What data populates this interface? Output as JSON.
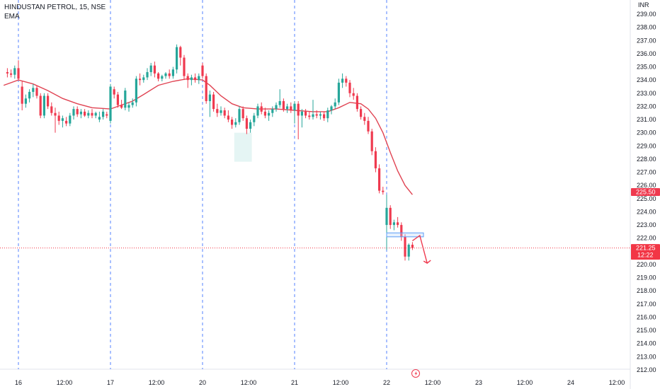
{
  "legend": {
    "symbol_line": "HINDUSTAN PETROL, 15, NSE",
    "indicator": "EMA"
  },
  "colors": {
    "up": "#26a69a",
    "down": "#ef3a4f",
    "ema": "#e04352",
    "grid_session": "#2962ff",
    "current_price_line": "#f23645",
    "axis_text": "#131722",
    "zone_fill": "#d3eeec",
    "range_box": "#bbd6f8"
  },
  "chart_data": {
    "type": "candlestick",
    "y_axis": {
      "currency": "INR",
      "min": 212.0,
      "max": 239.0,
      "ticks": [
        "212.00",
        "213.00",
        "214.00",
        "215.00",
        "216.00",
        "217.00",
        "218.00",
        "219.00",
        "220.00",
        "221.00",
        "222.00",
        "223.00",
        "224.00",
        "225.00",
        "226.00",
        "227.00",
        "228.00",
        "229.00",
        "230.00",
        "231.00",
        "232.00",
        "233.00",
        "234.00",
        "235.00",
        "236.00",
        "237.00",
        "238.00",
        "239.00"
      ]
    },
    "x_axis": {
      "labels": [
        "16",
        "12:00",
        "17",
        "12:00",
        "20",
        "12:00",
        "21",
        "12:00",
        "22",
        "12:00",
        "23",
        "12:00",
        "24",
        "12:00"
      ],
      "label_index": [
        0,
        12.5,
        25,
        37.5,
        50,
        62.5,
        75,
        87.5,
        100,
        112.5,
        125,
        137.5,
        150,
        162.5
      ],
      "range": [
        -4,
        164
      ],
      "session_starts": [
        0,
        25,
        50,
        75,
        100
      ]
    },
    "candles": [
      {
        "i": -3,
        "o": 234.6,
        "h": 234.9,
        "l": 234.2,
        "c": 234.5
      },
      {
        "i": -2,
        "o": 234.5,
        "h": 234.8,
        "l": 234.2,
        "c": 234.4
      },
      {
        "i": -1,
        "o": 234.4,
        "h": 235.1,
        "l": 234.1,
        "c": 234.9
      },
      {
        "i": 0,
        "o": 234.9,
        "h": 235.5,
        "l": 234.0,
        "c": 234.1
      },
      {
        "i": 1,
        "o": 233.5,
        "h": 233.9,
        "l": 231.7,
        "c": 232.2
      },
      {
        "i": 2,
        "o": 232.2,
        "h": 232.9,
        "l": 231.9,
        "c": 232.6
      },
      {
        "i": 3,
        "o": 232.6,
        "h": 233.3,
        "l": 232.3,
        "c": 233.1
      },
      {
        "i": 4,
        "o": 233.1,
        "h": 233.7,
        "l": 232.7,
        "c": 233.4
      },
      {
        "i": 5,
        "o": 233.4,
        "h": 233.6,
        "l": 232.6,
        "c": 232.8
      },
      {
        "i": 6,
        "o": 232.8,
        "h": 233.0,
        "l": 231.1,
        "c": 231.3
      },
      {
        "i": 7,
        "o": 231.3,
        "h": 233.0,
        "l": 231.1,
        "c": 232.8
      },
      {
        "i": 8,
        "o": 232.8,
        "h": 233.0,
        "l": 231.8,
        "c": 232.0
      },
      {
        "i": 9,
        "o": 232.0,
        "h": 232.3,
        "l": 231.3,
        "c": 231.5
      },
      {
        "i": 10,
        "o": 231.5,
        "h": 231.9,
        "l": 230.0,
        "c": 231.3
      },
      {
        "i": 11,
        "o": 231.3,
        "h": 231.6,
        "l": 230.6,
        "c": 230.9
      },
      {
        "i": 12,
        "o": 230.9,
        "h": 231.3,
        "l": 230.4,
        "c": 231.1
      },
      {
        "i": 13,
        "o": 230.9,
        "h": 231.2,
        "l": 230.5,
        "c": 230.7
      },
      {
        "i": 14,
        "o": 230.7,
        "h": 231.5,
        "l": 230.5,
        "c": 231.3
      },
      {
        "i": 15,
        "o": 231.3,
        "h": 232.0,
        "l": 231.0,
        "c": 231.8
      },
      {
        "i": 16,
        "o": 231.8,
        "h": 232.0,
        "l": 231.2,
        "c": 231.4
      },
      {
        "i": 17,
        "o": 231.4,
        "h": 231.8,
        "l": 231.1,
        "c": 231.6
      },
      {
        "i": 18,
        "o": 231.6,
        "h": 231.8,
        "l": 231.2,
        "c": 231.3
      },
      {
        "i": 19,
        "o": 231.3,
        "h": 231.7,
        "l": 231.1,
        "c": 231.5
      },
      {
        "i": 20,
        "o": 231.5,
        "h": 231.8,
        "l": 231.1,
        "c": 231.3
      },
      {
        "i": 21,
        "o": 231.3,
        "h": 231.6,
        "l": 231.1,
        "c": 231.5
      },
      {
        "i": 22,
        "o": 231.0,
        "h": 231.6,
        "l": 230.8,
        "c": 231.2
      },
      {
        "i": 23,
        "o": 231.2,
        "h": 231.8,
        "l": 231.0,
        "c": 231.6
      },
      {
        "i": 24,
        "o": 231.4,
        "h": 231.6,
        "l": 231.1,
        "c": 231.3
      },
      {
        "i": 25,
        "o": 230.9,
        "h": 233.7,
        "l": 230.7,
        "c": 233.5
      },
      {
        "i": 26,
        "o": 233.3,
        "h": 233.5,
        "l": 232.6,
        "c": 232.9
      },
      {
        "i": 27,
        "o": 232.9,
        "h": 233.1,
        "l": 231.9,
        "c": 232.1
      },
      {
        "i": 28,
        "o": 232.1,
        "h": 232.5,
        "l": 231.8,
        "c": 231.9
      },
      {
        "i": 29,
        "o": 231.9,
        "h": 233.4,
        "l": 231.7,
        "c": 233.2
      },
      {
        "i": 30,
        "o": 231.9,
        "h": 232.3,
        "l": 231.6,
        "c": 232.1
      },
      {
        "i": 31,
        "o": 232.1,
        "h": 232.6,
        "l": 231.9,
        "c": 232.3
      },
      {
        "i": 32,
        "o": 232.3,
        "h": 234.3,
        "l": 232.0,
        "c": 234.1
      },
      {
        "i": 33,
        "o": 234.1,
        "h": 234.5,
        "l": 233.6,
        "c": 234.0
      },
      {
        "i": 34,
        "o": 234.0,
        "h": 234.4,
        "l": 233.8,
        "c": 234.2
      },
      {
        "i": 35,
        "o": 234.2,
        "h": 234.9,
        "l": 234.0,
        "c": 234.6
      },
      {
        "i": 36,
        "o": 234.6,
        "h": 235.3,
        "l": 234.3,
        "c": 235.1
      },
      {
        "i": 37,
        "o": 235.1,
        "h": 235.4,
        "l": 234.2,
        "c": 234.5
      },
      {
        "i": 38,
        "o": 234.5,
        "h": 234.6,
        "l": 233.9,
        "c": 234.1
      },
      {
        "i": 39,
        "o": 234.1,
        "h": 234.4,
        "l": 233.9,
        "c": 234.3
      },
      {
        "i": 40,
        "o": 234.3,
        "h": 234.6,
        "l": 234.1,
        "c": 234.5
      },
      {
        "i": 41,
        "o": 234.5,
        "h": 234.8,
        "l": 234.1,
        "c": 234.3
      },
      {
        "i": 42,
        "o": 234.3,
        "h": 235.0,
        "l": 234.1,
        "c": 234.8
      },
      {
        "i": 43,
        "o": 234.8,
        "h": 236.7,
        "l": 234.5,
        "c": 236.5
      },
      {
        "i": 44,
        "o": 236.5,
        "h": 236.6,
        "l": 235.1,
        "c": 235.7
      },
      {
        "i": 45,
        "o": 235.7,
        "h": 235.9,
        "l": 234.0,
        "c": 234.3
      },
      {
        "i": 46,
        "o": 234.3,
        "h": 234.5,
        "l": 233.4,
        "c": 234.0
      },
      {
        "i": 47,
        "o": 234.0,
        "h": 234.4,
        "l": 233.6,
        "c": 234.2
      },
      {
        "i": 48,
        "o": 234.2,
        "h": 234.5,
        "l": 233.8,
        "c": 234.0
      },
      {
        "i": 49,
        "o": 234.0,
        "h": 234.5,
        "l": 233.7,
        "c": 234.3
      },
      {
        "i": 50,
        "o": 235.1,
        "h": 235.3,
        "l": 234.1,
        "c": 234.3
      },
      {
        "i": 51,
        "o": 234.3,
        "h": 234.5,
        "l": 232.2,
        "c": 232.4
      },
      {
        "i": 52,
        "o": 232.4,
        "h": 233.2,
        "l": 231.2,
        "c": 232.9
      },
      {
        "i": 53,
        "o": 232.9,
        "h": 233.1,
        "l": 231.6,
        "c": 231.8
      },
      {
        "i": 54,
        "o": 231.8,
        "h": 232.2,
        "l": 231.2,
        "c": 231.5
      },
      {
        "i": 55,
        "o": 231.5,
        "h": 232.0,
        "l": 231.3,
        "c": 231.7
      },
      {
        "i": 56,
        "o": 231.7,
        "h": 231.9,
        "l": 231.1,
        "c": 231.3
      },
      {
        "i": 57,
        "o": 231.3,
        "h": 231.7,
        "l": 230.8,
        "c": 231.0
      },
      {
        "i": 58,
        "o": 231.0,
        "h": 231.2,
        "l": 230.3,
        "c": 230.6
      },
      {
        "i": 59,
        "o": 230.6,
        "h": 231.1,
        "l": 230.4,
        "c": 230.8
      },
      {
        "i": 60,
        "o": 230.8,
        "h": 232.0,
        "l": 230.6,
        "c": 231.8
      },
      {
        "i": 61,
        "o": 231.8,
        "h": 232.0,
        "l": 230.9,
        "c": 231.1
      },
      {
        "i": 62,
        "o": 231.1,
        "h": 231.3,
        "l": 229.9,
        "c": 230.3
      },
      {
        "i": 63,
        "o": 230.3,
        "h": 231.0,
        "l": 230.0,
        "c": 230.8
      },
      {
        "i": 64,
        "o": 230.8,
        "h": 231.5,
        "l": 230.5,
        "c": 231.3
      },
      {
        "i": 65,
        "o": 231.3,
        "h": 232.2,
        "l": 231.1,
        "c": 232.0
      },
      {
        "i": 66,
        "o": 232.0,
        "h": 232.3,
        "l": 231.4,
        "c": 231.6
      },
      {
        "i": 67,
        "o": 231.6,
        "h": 231.9,
        "l": 231.1,
        "c": 231.3
      },
      {
        "i": 68,
        "o": 231.3,
        "h": 231.7,
        "l": 230.9,
        "c": 231.5
      },
      {
        "i": 69,
        "o": 231.5,
        "h": 232.0,
        "l": 231.2,
        "c": 231.8
      },
      {
        "i": 70,
        "o": 231.8,
        "h": 232.3,
        "l": 231.6,
        "c": 232.1
      },
      {
        "i": 71,
        "o": 232.1,
        "h": 233.3,
        "l": 231.9,
        "c": 232.4
      },
      {
        "i": 72,
        "o": 232.4,
        "h": 232.6,
        "l": 231.6,
        "c": 231.8
      },
      {
        "i": 73,
        "o": 231.8,
        "h": 232.2,
        "l": 231.5,
        "c": 232.0
      },
      {
        "i": 74,
        "o": 232.0,
        "h": 232.3,
        "l": 231.5,
        "c": 231.7
      },
      {
        "i": 75,
        "o": 231.7,
        "h": 232.4,
        "l": 230.7,
        "c": 232.2
      },
      {
        "i": 76,
        "o": 232.2,
        "h": 232.4,
        "l": 229.5,
        "c": 231.3
      },
      {
        "i": 77,
        "o": 231.3,
        "h": 231.8,
        "l": 230.4,
        "c": 231.6
      },
      {
        "i": 78,
        "o": 231.6,
        "h": 231.8,
        "l": 231.1,
        "c": 231.3
      },
      {
        "i": 79,
        "o": 231.3,
        "h": 231.6,
        "l": 231.0,
        "c": 231.2
      },
      {
        "i": 80,
        "o": 231.2,
        "h": 232.5,
        "l": 231.0,
        "c": 231.4
      },
      {
        "i": 81,
        "o": 231.4,
        "h": 231.7,
        "l": 231.1,
        "c": 231.3
      },
      {
        "i": 82,
        "o": 231.3,
        "h": 231.6,
        "l": 231.0,
        "c": 231.4
      },
      {
        "i": 83,
        "o": 231.4,
        "h": 231.6,
        "l": 230.9,
        "c": 231.1
      },
      {
        "i": 84,
        "o": 231.1,
        "h": 231.9,
        "l": 230.8,
        "c": 231.7
      },
      {
        "i": 85,
        "o": 231.7,
        "h": 232.1,
        "l": 231.4,
        "c": 232.0
      },
      {
        "i": 86,
        "o": 232.0,
        "h": 232.6,
        "l": 231.8,
        "c": 232.3
      },
      {
        "i": 87,
        "o": 232.3,
        "h": 234.1,
        "l": 232.1,
        "c": 233.8
      },
      {
        "i": 88,
        "o": 233.8,
        "h": 234.5,
        "l": 233.4,
        "c": 234.1
      },
      {
        "i": 89,
        "o": 234.1,
        "h": 234.3,
        "l": 233.5,
        "c": 233.8
      },
      {
        "i": 90,
        "o": 233.8,
        "h": 234.0,
        "l": 232.7,
        "c": 233.0
      },
      {
        "i": 91,
        "o": 233.0,
        "h": 233.4,
        "l": 232.5,
        "c": 232.8
      },
      {
        "i": 92,
        "o": 232.8,
        "h": 233.0,
        "l": 231.6,
        "c": 231.8
      },
      {
        "i": 93,
        "o": 231.8,
        "h": 232.0,
        "l": 231.0,
        "c": 231.2
      },
      {
        "i": 94,
        "o": 231.2,
        "h": 231.5,
        "l": 230.6,
        "c": 230.9
      },
      {
        "i": 95,
        "o": 230.9,
        "h": 231.2,
        "l": 229.9,
        "c": 230.1
      },
      {
        "i": 96,
        "o": 230.1,
        "h": 230.3,
        "l": 228.3,
        "c": 228.6
      },
      {
        "i": 97,
        "o": 228.6,
        "h": 228.9,
        "l": 227.0,
        "c": 227.3
      },
      {
        "i": 98,
        "o": 227.3,
        "h": 227.6,
        "l": 225.4,
        "c": 225.6
      },
      {
        "i": 99,
        "o": 225.6,
        "h": 225.9,
        "l": 225.3,
        "c": 225.5
      },
      {
        "i": 100,
        "o": 223.0,
        "h": 225.3,
        "l": 221.1,
        "c": 224.3
      },
      {
        "i": 101,
        "o": 224.3,
        "h": 224.5,
        "l": 222.7,
        "c": 223.0
      },
      {
        "i": 102,
        "o": 223.0,
        "h": 223.4,
        "l": 222.6,
        "c": 223.2
      },
      {
        "i": 103,
        "o": 223.2,
        "h": 223.6,
        "l": 222.8,
        "c": 223.0
      },
      {
        "i": 104,
        "o": 223.0,
        "h": 223.2,
        "l": 221.8,
        "c": 222.1
      },
      {
        "i": 105,
        "o": 222.1,
        "h": 222.3,
        "l": 220.3,
        "c": 220.6
      },
      {
        "i": 106,
        "o": 220.6,
        "h": 221.6,
        "l": 220.3,
        "c": 221.5
      },
      {
        "i": 107,
        "o": 221.5,
        "h": 221.7,
        "l": 221.1,
        "c": 221.25
      }
    ],
    "ema": [
      {
        "i": -4,
        "v": 233.6
      },
      {
        "i": 0,
        "v": 234.0
      },
      {
        "i": 4,
        "v": 233.7
      },
      {
        "i": 8,
        "v": 233.2
      },
      {
        "i": 12,
        "v": 232.6
      },
      {
        "i": 16,
        "v": 232.2
      },
      {
        "i": 20,
        "v": 231.9
      },
      {
        "i": 25,
        "v": 231.8
      },
      {
        "i": 28,
        "v": 232.1
      },
      {
        "i": 31,
        "v": 232.4
      },
      {
        "i": 34,
        "v": 232.9
      },
      {
        "i": 38,
        "v": 233.6
      },
      {
        "i": 42,
        "v": 233.9
      },
      {
        "i": 46,
        "v": 234.1
      },
      {
        "i": 50,
        "v": 234.0
      },
      {
        "i": 52,
        "v": 233.6
      },
      {
        "i": 55,
        "v": 232.8
      },
      {
        "i": 58,
        "v": 232.2
      },
      {
        "i": 61,
        "v": 231.9
      },
      {
        "i": 65,
        "v": 231.8
      },
      {
        "i": 70,
        "v": 231.8
      },
      {
        "i": 75,
        "v": 231.7
      },
      {
        "i": 80,
        "v": 231.6
      },
      {
        "i": 84,
        "v": 231.6
      },
      {
        "i": 87,
        "v": 231.9
      },
      {
        "i": 90,
        "v": 232.3
      },
      {
        "i": 93,
        "v": 232.2
      },
      {
        "i": 95,
        "v": 231.8
      },
      {
        "i": 97,
        "v": 231.1
      },
      {
        "i": 99,
        "v": 230.0
      },
      {
        "i": 101,
        "v": 228.5
      },
      {
        "i": 103,
        "v": 227.1
      },
      {
        "i": 105,
        "v": 226.0
      },
      {
        "i": 107,
        "v": 225.3
      }
    ],
    "zone": {
      "i0": 59,
      "i1": 63,
      "y_top": 230.0,
      "y_bottom": 227.8
    },
    "range_box": {
      "i0": 100,
      "i1": 110,
      "y_top": 222.4,
      "y_bottom": 222.1
    },
    "projection_arrow": [
      {
        "i": 107,
        "v": 221.8
      },
      {
        "i": 109,
        "v": 222.2
      },
      {
        "i": 111,
        "v": 220.1
      }
    ],
    "price_tags": [
      {
        "value": "225.50",
        "price": 225.5,
        "color": "#ef3a4f"
      },
      {
        "value": "221.25",
        "sub": "12:22",
        "price": 221.25,
        "color": "#f23645"
      }
    ],
    "current_price": 221.25
  }
}
